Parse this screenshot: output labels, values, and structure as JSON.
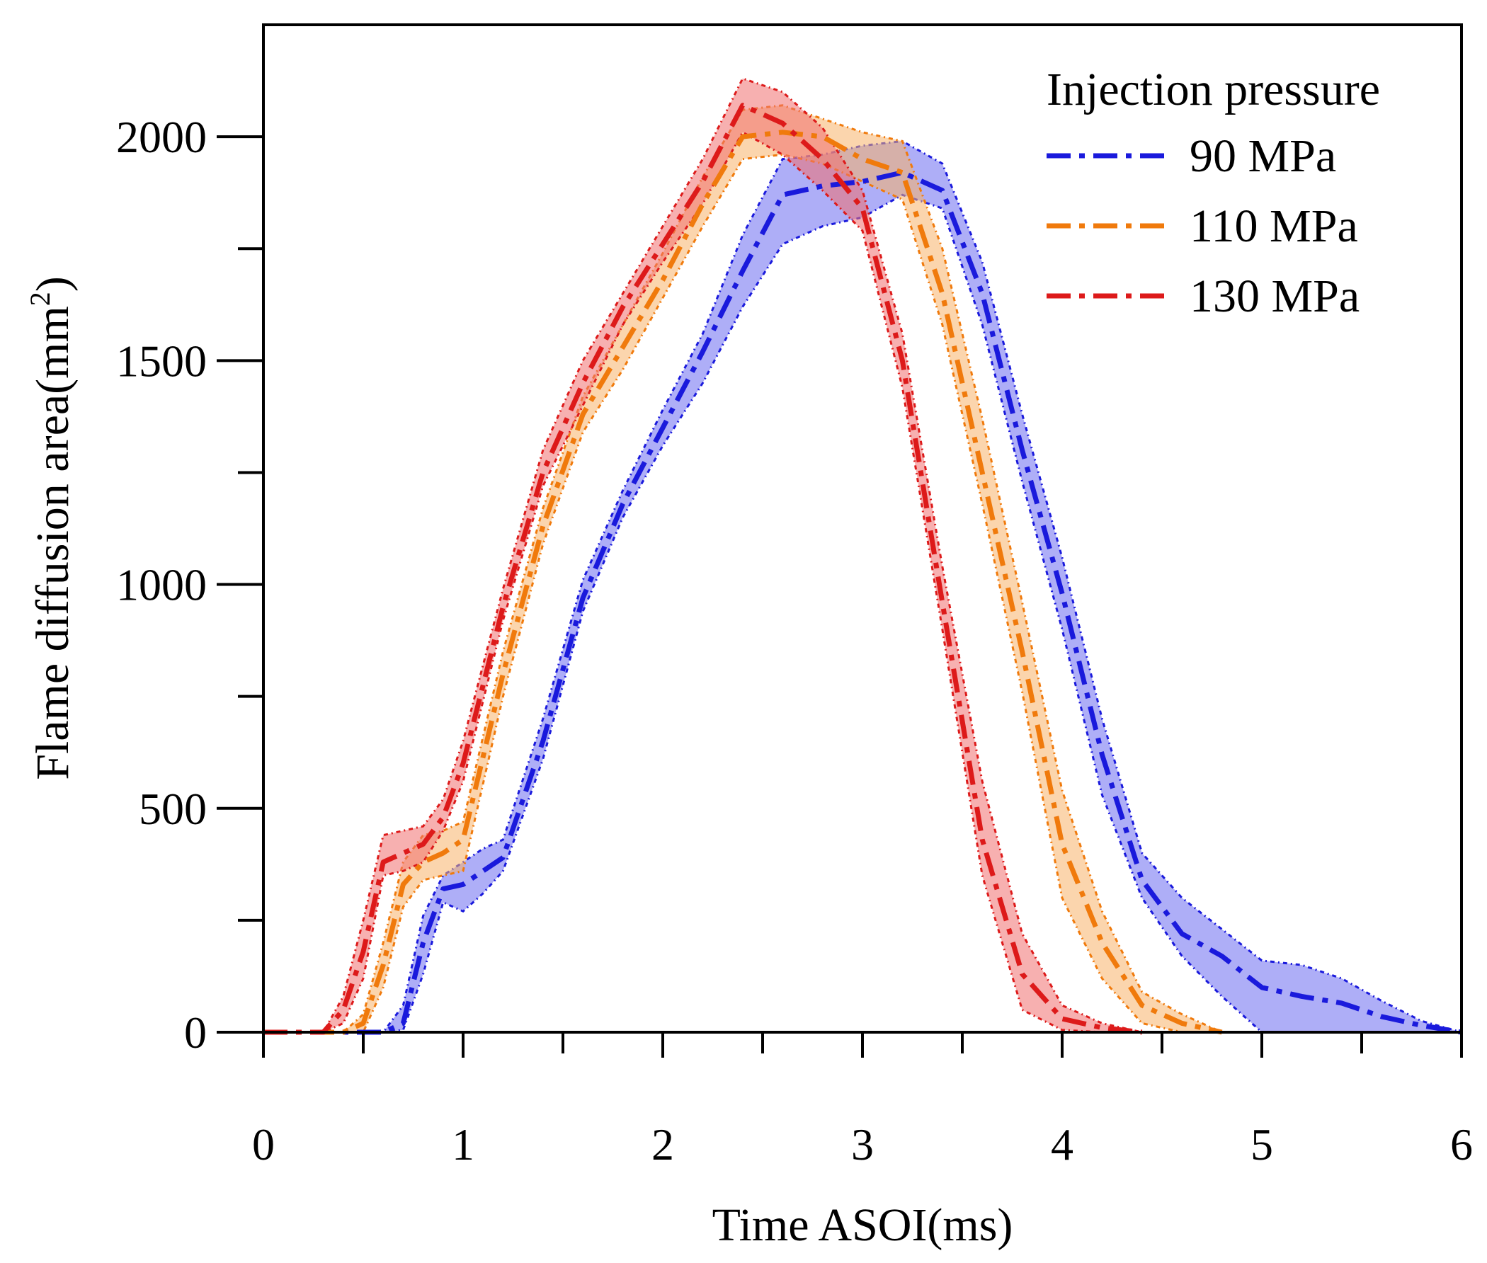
{
  "chart_data": {
    "type": "area",
    "title": "",
    "xlabel": "Time ASOI(ms)",
    "ylabel_main": "Flame diffusion area(mm",
    "ylabel_sup": "2",
    "ylabel_end": ")",
    "xlim": [
      0,
      6
    ],
    "ylim": [
      0,
      2250
    ],
    "xticks": [
      0,
      1,
      2,
      3,
      4,
      5,
      6
    ],
    "xtick_labels": [
      "0",
      "1",
      "2",
      "3",
      "4",
      "5",
      "6"
    ],
    "yticks": [
      0,
      500,
      1000,
      1500,
      2000
    ],
    "ytick_labels": [
      "0",
      "500",
      "1000",
      "1500",
      "2000"
    ],
    "y_minor_ticks": [
      250,
      750,
      1250,
      1750
    ],
    "x_minor_ticks": [
      0.5,
      1.5,
      2.5,
      3.5,
      4.5,
      5.5
    ],
    "grid": false,
    "legend_title": "Injection pressure",
    "legend_position": "top-right",
    "series": [
      {
        "name": "90 MPa",
        "color": "#1a1adc",
        "fill": "#6b6bf0",
        "x": [
          0,
          0.6,
          0.7,
          0.8,
          0.9,
          1.0,
          1.1,
          1.2,
          1.4,
          1.6,
          1.8,
          2.0,
          2.2,
          2.4,
          2.6,
          2.8,
          3.0,
          3.2,
          3.4,
          3.6,
          3.8,
          4.0,
          4.2,
          4.4,
          4.6,
          4.8,
          5.0,
          5.2,
          5.4,
          5.6,
          5.8,
          6.0
        ],
        "mean": [
          0,
          0,
          20,
          200,
          320,
          330,
          360,
          390,
          650,
          970,
          1180,
          1350,
          1520,
          1700,
          1870,
          1890,
          1900,
          1920,
          1880,
          1650,
          1300,
          980,
          620,
          340,
          220,
          170,
          100,
          80,
          65,
          35,
          15,
          0
        ],
        "upper": [
          0,
          0,
          60,
          260,
          350,
          380,
          410,
          430,
          700,
          1010,
          1210,
          1390,
          1560,
          1780,
          1950,
          1960,
          1980,
          1990,
          1940,
          1720,
          1380,
          1060,
          700,
          400,
          300,
          230,
          160,
          150,
          120,
          70,
          25,
          0
        ],
        "lower": [
          0,
          0,
          5,
          130,
          290,
          270,
          310,
          360,
          610,
          940,
          1150,
          1310,
          1450,
          1620,
          1760,
          1800,
          1820,
          1870,
          1840,
          1580,
          1230,
          900,
          530,
          300,
          170,
          80,
          0,
          0,
          0,
          0,
          0,
          0
        ]
      },
      {
        "name": "110 MPa",
        "color": "#f07a0c",
        "fill": "#f8b36a",
        "x": [
          0,
          0.4,
          0.5,
          0.6,
          0.7,
          0.8,
          0.9,
          1.0,
          1.2,
          1.4,
          1.6,
          1.8,
          2.0,
          2.2,
          2.4,
          2.6,
          2.8,
          3.0,
          3.2,
          3.4,
          3.6,
          3.8,
          4.0,
          4.2,
          4.4,
          4.6,
          4.8
        ],
        "mean": [
          0,
          0,
          20,
          150,
          330,
          380,
          400,
          430,
          800,
          1130,
          1380,
          1530,
          1680,
          1850,
          2000,
          2010,
          2000,
          1950,
          1920,
          1650,
          1250,
          850,
          420,
          200,
          60,
          20,
          0
        ],
        "upper": [
          0,
          0,
          40,
          200,
          380,
          440,
          450,
          470,
          850,
          1170,
          1420,
          1580,
          1740,
          1910,
          2060,
          2070,
          2040,
          2010,
          1990,
          1750,
          1370,
          960,
          540,
          270,
          90,
          40,
          0
        ],
        "lower": [
          0,
          0,
          0,
          100,
          280,
          340,
          350,
          360,
          750,
          1090,
          1340,
          1480,
          1640,
          1800,
          1950,
          1960,
          1940,
          1900,
          1860,
          1580,
          1180,
          760,
          300,
          120,
          20,
          0,
          0
        ]
      },
      {
        "name": "130 MPa",
        "color": "#dd1a1a",
        "fill": "#f07070",
        "x": [
          0,
          0.3,
          0.4,
          0.5,
          0.6,
          0.7,
          0.8,
          0.9,
          1.0,
          1.2,
          1.4,
          1.6,
          1.8,
          2.0,
          2.2,
          2.4,
          2.6,
          2.8,
          3.0,
          3.2,
          3.4,
          3.6,
          3.8,
          4.0,
          4.2,
          4.4
        ],
        "mean": [
          0,
          0,
          50,
          180,
          380,
          400,
          420,
          480,
          600,
          950,
          1250,
          1450,
          1620,
          1760,
          1900,
          2070,
          2030,
          1950,
          1840,
          1500,
          960,
          430,
          130,
          30,
          10,
          0
        ],
        "upper": [
          0,
          0,
          80,
          250,
          440,
          450,
          460,
          520,
          650,
          990,
          1300,
          1500,
          1650,
          1800,
          1950,
          2130,
          2100,
          2020,
          1880,
          1560,
          1040,
          560,
          220,
          60,
          20,
          0
        ],
        "lower": [
          0,
          0,
          20,
          120,
          350,
          360,
          380,
          450,
          560,
          920,
          1220,
          1400,
          1580,
          1720,
          1850,
          2010,
          1960,
          1880,
          1790,
          1440,
          900,
          350,
          50,
          5,
          0,
          0
        ]
      }
    ]
  }
}
